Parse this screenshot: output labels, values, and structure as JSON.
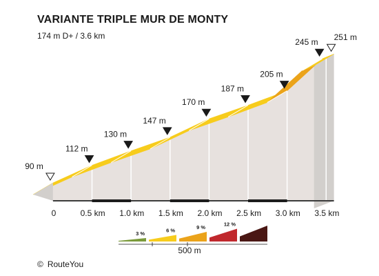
{
  "title": "VARIANTE TRIPLE MUR DE MONTY",
  "subtitle": "174 m D+ / 3.6 km",
  "credit": "RouteYou",
  "credit_symbol": "©",
  "chart_data": {
    "type": "area",
    "title": "VARIANTE TRIPLE MUR DE MONTY",
    "subtitle": "174 m D+ / 3.6 km",
    "x_unit": "km",
    "y_unit": "m",
    "xlim": [
      0,
      3.6
    ],
    "x_ticks": [
      "0",
      "0.5 km",
      "1.0 km",
      "1.5 km",
      "2.0 km",
      "2.5 km",
      "3.0 km",
      "3.5 km"
    ],
    "x_tick_values": [
      0,
      0.5,
      1.0,
      1.5,
      2.0,
      2.5,
      3.0,
      3.5
    ],
    "profile": [
      {
        "x": 0.0,
        "y": 90,
        "grade_class": "6 %"
      },
      {
        "x": 0.5,
        "y": 112,
        "grade_class": "6 %"
      },
      {
        "x": 1.0,
        "y": 130,
        "grade_class": "6 %"
      },
      {
        "x": 1.5,
        "y": 147,
        "grade_class": "6 %"
      },
      {
        "x": 2.0,
        "y": 170,
        "grade_class": "6 %"
      },
      {
        "x": 2.5,
        "y": 187,
        "grade_class": "6 %"
      },
      {
        "x": 3.0,
        "y": 205,
        "grade_class": "9 %"
      },
      {
        "x": 3.45,
        "y": 245,
        "grade_class": "6 %"
      },
      {
        "x": 3.6,
        "y": 251,
        "grade_class": null
      }
    ],
    "point_labels": [
      {
        "x": 0.0,
        "label": "90 m",
        "marker": "open"
      },
      {
        "x": 0.5,
        "label": "112 m",
        "marker": "filled"
      },
      {
        "x": 1.0,
        "label": "130 m",
        "marker": "filled"
      },
      {
        "x": 1.5,
        "label": "147 m",
        "marker": "filled"
      },
      {
        "x": 2.0,
        "label": "170 m",
        "marker": "filled"
      },
      {
        "x": 2.5,
        "label": "187 m",
        "marker": "filled"
      },
      {
        "x": 3.0,
        "label": "205 m",
        "marker": "filled"
      },
      {
        "x": 3.45,
        "label": "245 m",
        "marker": "filled"
      },
      {
        "x": 3.6,
        "label": "251 m",
        "marker": "open"
      }
    ],
    "legend": {
      "scale_label": "500 m",
      "items": [
        {
          "label": "3 %",
          "color": "#7a9a3a"
        },
        {
          "label": "6 %",
          "color": "#f7cc1c"
        },
        {
          "label": "9 %",
          "color": "#eba31a"
        },
        {
          "label": "12 %",
          "color": "#c0282d"
        },
        {
          "label": "",
          "color": "#4a1714"
        }
      ]
    },
    "colors": {
      "6 %": "#f7cc1c",
      "9 %": "#eba31a",
      "wall": "#e7e1de",
      "wall_divider": "#ffffff",
      "side": "#d2cfcc",
      "base_line": "#3b3b3b",
      "base_dark": "#1c1c1c",
      "top_divider": "#ffffff"
    }
  }
}
